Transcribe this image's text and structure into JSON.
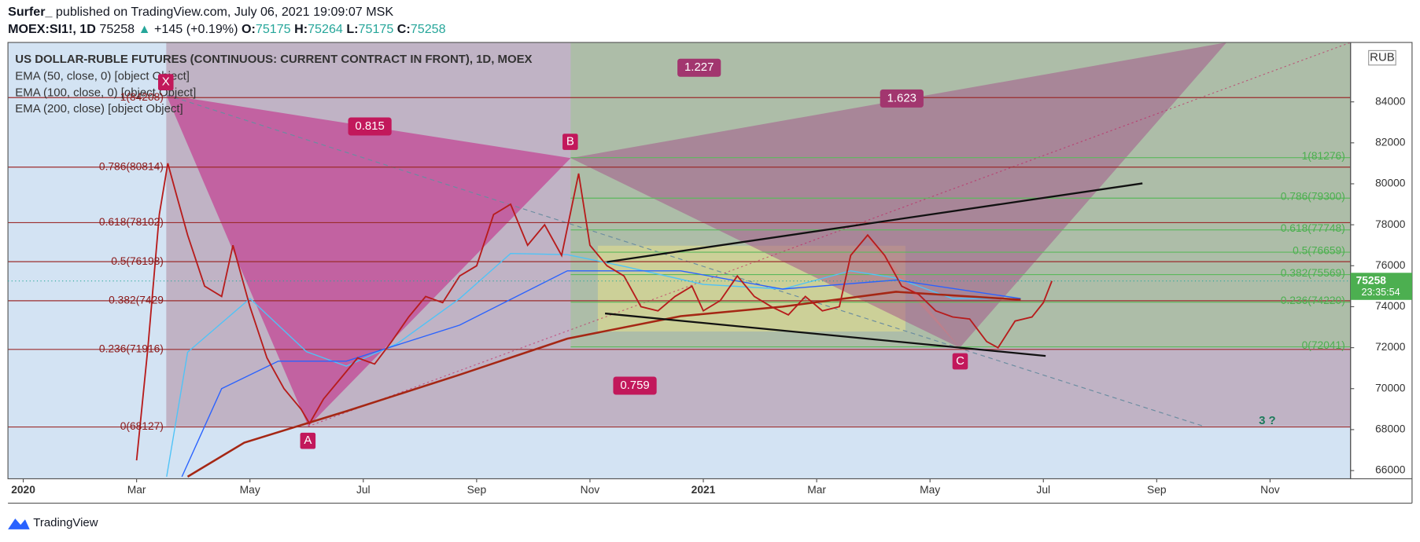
{
  "header": {
    "author": "Surfer_",
    "published": "published on TradingView.com, July 06, 2021 19:09:07 MSK",
    "symbol": "MOEX:SI1!, 1D",
    "price": "75258",
    "change": "+145 (+0.19%)",
    "ohlc": [
      {
        "key": "O:",
        "value": "75175"
      },
      {
        "key": "H:",
        "value": "75264"
      },
      {
        "key": "L:",
        "value": "75175"
      },
      {
        "key": "C:",
        "value": "75258"
      }
    ]
  },
  "chart_data": {
    "type": "line",
    "title": "US DOLLAR-RUBLE FUTURES (CONTINUOUS: CURRENT CONTRACT IN FRONT), 1D, MOEX",
    "currency": "RUB",
    "x": [
      2.0,
      2.2,
      2.4,
      2.55,
      2.7,
      2.9,
      3.2,
      3.5,
      3.7,
      4.0,
      4.3,
      4.6,
      4.9,
      5.05,
      5.3,
      5.6,
      5.9,
      6.2,
      6.5,
      6.8,
      7.1,
      7.4,
      7.7,
      8.0,
      8.3,
      8.6,
      8.9,
      9.2,
      9.5,
      9.8,
      10.0,
      10.3,
      10.6,
      10.9,
      11.2,
      11.5,
      11.8,
      12.0,
      12.3,
      12.6,
      12.9,
      13.2,
      13.5,
      13.8,
      14.1,
      14.4,
      14.6,
      14.9,
      15.2,
      15.5,
      15.8,
      16.1,
      16.4,
      16.7,
      17.0,
      17.2,
      17.5,
      17.8,
      18.0,
      18.15
    ],
    "series": [
      {
        "color": "#b71c1c",
        "values": [
          66500,
          72000,
          78500,
          81000,
          79500,
          77500,
          75000,
          74500,
          77000,
          74000,
          71500,
          70000,
          69000,
          68300,
          69500,
          70500,
          71500,
          71200,
          72300,
          73500,
          74500,
          74200,
          75500,
          76000,
          78500,
          79000,
          77000,
          78000,
          76500,
          80500,
          77000,
          76000,
          75500,
          74000,
          73800,
          74500,
          75000,
          73800,
          74300,
          75500,
          74500,
          74000,
          73600,
          74500,
          73800,
          74000,
          76500,
          77500,
          76500,
          75000,
          74600,
          73800,
          73500,
          73400,
          72300,
          72000,
          73300,
          73500,
          74200,
          75258
        ]
      },
      {
        "name": "EMA (50, close, 0) [object Object]",
        "color": "#4fc3f7",
        "x": [
          2.53,
          2.9,
          4.0,
          5.0,
          5.7,
          6.6,
          7.7,
          8.6,
          9.6,
          10.6,
          12.0,
          13.4,
          14.6,
          15.4,
          16.4,
          17.6
        ],
        "values": [
          65700,
          71780,
          74400,
          71800,
          71100,
          72200,
          74400,
          76600,
          76540,
          75970,
          75090,
          74860,
          75750,
          75400,
          74400,
          74400
        ]
      },
      {
        "name": "EMA (100, close, 0) [object Object]",
        "color": "#2962ff",
        "x": [
          2.8,
          3.5,
          4.5,
          5.7,
          7.7,
          9.6,
          11.6,
          13.4,
          15.4,
          17.6
        ],
        "values": [
          65700,
          70000,
          71340,
          71340,
          73100,
          75750,
          75750,
          74860,
          75300,
          74400
        ]
      },
      {
        "name": "EMA (200, close) [object Object]",
        "color": "#a52714",
        "x": [
          2.9,
          3.9,
          5.7,
          7.7,
          9.6,
          11.6,
          13.4,
          15.4,
          17.6
        ],
        "values": [
          65700,
          67366,
          68900,
          70680,
          72440,
          73540,
          74000,
          74730,
          74340
        ]
      }
    ],
    "last_price": {
      "value": 75258,
      "countdown": "23:35:54"
    },
    "xlim": [
      -0.27,
      23.42
    ],
    "xticks": [
      {
        "value": 0,
        "label": "2020"
      },
      {
        "value": 2,
        "label": "Mar"
      },
      {
        "value": 4,
        "label": "May"
      },
      {
        "value": 6,
        "label": "Jul"
      },
      {
        "value": 8,
        "label": "Sep"
      },
      {
        "value": 10,
        "label": "Nov"
      },
      {
        "value": 12,
        "label": "2021"
      },
      {
        "value": 14,
        "label": "Mar"
      },
      {
        "value": 16,
        "label": "May"
      },
      {
        "value": 18,
        "label": "Jul"
      },
      {
        "value": 20,
        "label": "Sep"
      },
      {
        "value": 22,
        "label": "Nov"
      }
    ],
    "ylim": [
      65600,
      86900
    ],
    "yticks": [
      66000,
      68000,
      70000,
      72000,
      74000,
      76000,
      78000,
      80000,
      82000,
      84000
    ],
    "fib_left": [
      {
        "value": 84208,
        "label": "1(84208)"
      },
      {
        "value": 80814,
        "label": "0.786(80814)"
      },
      {
        "value": 78102,
        "label": "0.618(78102)"
      },
      {
        "value": 76198,
        "label": "0.5(76198)"
      },
      {
        "value": 74290,
        "label": "0.382(7429"
      },
      {
        "value": 71916,
        "label": "0.236(71916)"
      },
      {
        "value": 68127,
        "label": "0(68127)"
      }
    ],
    "fib_right": [
      {
        "value": 81276,
        "label": "1(81276)"
      },
      {
        "value": 79300,
        "label": "0.786(79300)"
      },
      {
        "value": 77748,
        "label": "0.618(77748)"
      },
      {
        "value": 76659,
        "label": "0.5(76659)"
      },
      {
        "value": 75569,
        "label": "0.382(75569)"
      },
      {
        "value": 74220,
        "label": "0.236(74220)"
      },
      {
        "value": 72041,
        "label": "0(72041)"
      }
    ],
    "pattern_points": [
      "X",
      "A",
      "B",
      "C"
    ],
    "ratios": [
      "0.815",
      "1.227",
      "1.623",
      "0.759"
    ],
    "annotation": "3 ?"
  },
  "footer": {
    "brand": "TradingView"
  }
}
